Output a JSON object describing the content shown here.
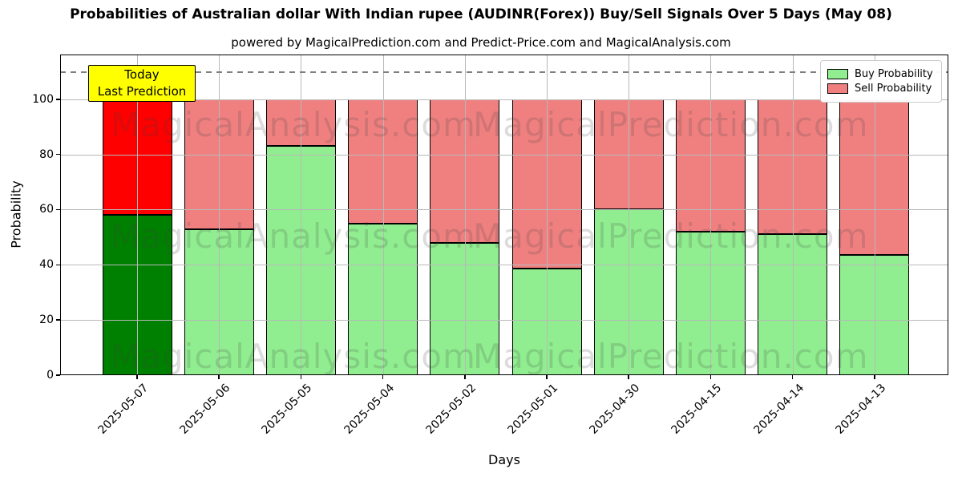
{
  "chart_data": {
    "type": "bar",
    "stacked": true,
    "title": "Probabilities of Australian dollar With Indian rupee (AUDINR(Forex)) Buy/Sell Signals Over 5 Days (May 08)",
    "subtitle": "powered by MagicalPrediction.com and Predict-Price.com and MagicalAnalysis.com",
    "xlabel": "Days",
    "ylabel": "Probability",
    "categories": [
      "2025-05-07",
      "2025-05-06",
      "2025-05-05",
      "2025-05-04",
      "2025-05-02",
      "2025-05-01",
      "2025-04-30",
      "2025-04-15",
      "2025-04-14",
      "2025-04-13"
    ],
    "series": [
      {
        "name": "Buy Probability",
        "color": "#90ee90",
        "values": [
          58,
          53,
          83,
          55,
          48,
          38.5,
          60,
          52,
          51,
          43.5
        ]
      },
      {
        "name": "Sell Probability",
        "color": "#f08080",
        "values": [
          42,
          47,
          17,
          45,
          52,
          61.5,
          40,
          48,
          49,
          56.5
        ]
      }
    ],
    "today_bar": {
      "index": 0,
      "buy_color": "#008000",
      "sell_color": "#ff0000"
    },
    "annotation": {
      "lines": [
        "Today",
        "Last Prediction"
      ],
      "bg_color": "#ffff00"
    },
    "reference_line_y": 110,
    "ylim": [
      0,
      116.2
    ],
    "yticks": [
      0,
      20,
      40,
      60,
      80,
      100
    ],
    "grid": true,
    "legend_position": "upper right",
    "watermarks": [
      "MagicalAnalysis.com",
      "MagicalPrediction.com"
    ],
    "colors": {
      "grid": "#b8b8b8",
      "reference_line": "#7f7f7f",
      "bar_edge": "#000000"
    }
  }
}
